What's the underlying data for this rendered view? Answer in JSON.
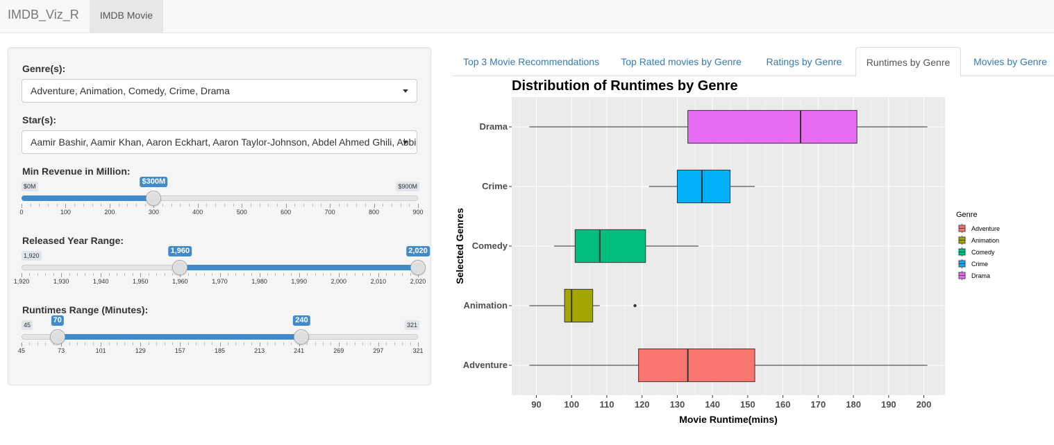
{
  "navbar": {
    "brand": "IMDB_Viz_R",
    "tab": "IMDB Movie"
  },
  "sidebar": {
    "genres": {
      "label": "Genre(s):",
      "value": "Adventure, Animation, Comedy, Crime, Drama"
    },
    "stars": {
      "label": "Star(s):",
      "value": "Aamir Bashir, Aamir Khan, Aaron Eckhart, Aaron Taylor-Johnson, Abdel Ahmed Ghili, Abbie Cornish"
    },
    "revenue": {
      "label": "Min Revenue in Million:",
      "min_label": "$0M",
      "max_label": "$900M",
      "value_label": "$300M",
      "min": 0,
      "max": 900,
      "value": 300,
      "ticks": [
        "0",
        "100",
        "200",
        "300",
        "400",
        "500",
        "600",
        "700",
        "800",
        "900"
      ]
    },
    "year": {
      "label": "Released Year Range:",
      "min_label": "1,920",
      "from_label": "1,960",
      "to_label": "2,020",
      "min": 1920,
      "max": 2020,
      "from": 1960,
      "to": 2020,
      "ticks": [
        "1,920",
        "1,930",
        "1,940",
        "1,950",
        "1,960",
        "1,970",
        "1,980",
        "1,990",
        "2,000",
        "2,010",
        "2,020"
      ]
    },
    "runtime": {
      "label": "Runtimes Range (Minutes):",
      "min_label": "45",
      "max_label": "321",
      "from_label": "70",
      "to_label": "240",
      "min": 45,
      "max": 321,
      "from": 70,
      "to": 240,
      "ticks": [
        "45",
        "73",
        "101",
        "129",
        "157",
        "185",
        "213",
        "241",
        "269",
        "297",
        "321"
      ]
    }
  },
  "tabs": [
    "Top 3 Movie Recommendations",
    "Top Rated movies by Genre",
    "Ratings by Genre",
    "Runtimes by Genre",
    "Movies by Genre"
  ],
  "active_tab": 3,
  "colors": {
    "accent": "#428bca",
    "panel_bg": "#ebebeb"
  },
  "chart_data": {
    "type": "boxplot",
    "title": "Distribution of Runtimes by Genre",
    "xlabel": "Movie Runtime(mins)",
    "ylabel": "Selected Genres",
    "xlim": [
      83,
      206
    ],
    "xticks": [
      90,
      100,
      110,
      120,
      130,
      140,
      150,
      160,
      170,
      180,
      190,
      200
    ],
    "legend_title": "Genre",
    "legend_position": "right",
    "series": [
      {
        "name": "Adventure",
        "color": "#F8766D",
        "whisker_low": 88,
        "q1": 119,
        "median": 133,
        "q3": 152,
        "whisker_high": 201,
        "outliers": []
      },
      {
        "name": "Animation",
        "color": "#A3A500",
        "whisker_low": 88,
        "q1": 98,
        "median": 100,
        "q3": 106,
        "whisker_high": 108,
        "outliers": [
          118
        ]
      },
      {
        "name": "Comedy",
        "color": "#00BF7D",
        "whisker_low": 95,
        "q1": 101,
        "median": 108,
        "q3": 121,
        "whisker_high": 136,
        "outliers": []
      },
      {
        "name": "Crime",
        "color": "#00B0F6",
        "whisker_low": 122,
        "q1": 130,
        "median": 137,
        "q3": 145,
        "whisker_high": 152,
        "outliers": []
      },
      {
        "name": "Drama",
        "color": "#E76BF3",
        "whisker_low": 88,
        "q1": 133,
        "median": 165,
        "q3": 181,
        "whisker_high": 201,
        "outliers": []
      }
    ]
  }
}
